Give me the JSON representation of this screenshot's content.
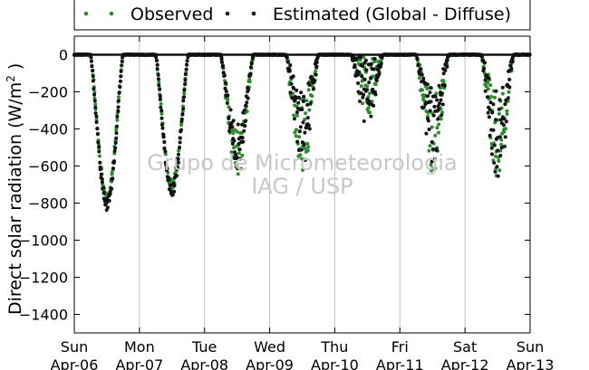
{
  "chart_data": {
    "type": "scatter",
    "ylabel_main": "Direct solar radiation (W/m",
    "ylabel_sup": "2",
    "ylabel_close": " )",
    "ylim": [
      -1500,
      100
    ],
    "yticks": [
      0,
      -200,
      -400,
      -600,
      -800,
      -1000,
      -1200,
      -1400
    ],
    "ytick_labels": [
      "0",
      "−200",
      "−400",
      "−600",
      "−800",
      "−1000",
      "−1200",
      "−1400"
    ],
    "xlim": [
      0,
      7
    ],
    "xticks": [
      0,
      1,
      2,
      3,
      4,
      5,
      6,
      7
    ],
    "xtick_days": [
      "Sun",
      "Mon",
      "Tue",
      "Wed",
      "Thu",
      "Fri",
      "Sat",
      "Sun"
    ],
    "xtick_dates": [
      "Apr-06",
      "Apr-07",
      "Apr-08",
      "Apr-09",
      "Apr-10",
      "Apr-11",
      "Apr-12",
      "Apr-13"
    ],
    "grid": "vertical",
    "legend_placement": "top, outside plot",
    "watermark": [
      "Grupo de Micrometeorologia",
      "IAG / USP"
    ],
    "series": [
      {
        "name": "Observed",
        "color": "#2e8b2e",
        "marker": "dot"
      },
      {
        "name": "Estimated (Global - Diffuse)",
        "color": "#111111",
        "marker": "dot"
      }
    ],
    "daily_minimum": [
      {
        "day": "Apr-06",
        "observed": -800,
        "estimated": -840
      },
      {
        "day": "Apr-07",
        "observed": -730,
        "estimated": -760
      },
      {
        "day": "Apr-08",
        "observed": -680,
        "estimated": -620
      },
      {
        "day": "Apr-09",
        "observed": -630,
        "estimated": -620
      },
      {
        "day": "Apr-10",
        "observed": -330,
        "estimated": -380
      },
      {
        "day": "Apr-11",
        "observed": -660,
        "estimated": -640
      },
      {
        "day": "Apr-12",
        "observed": -660,
        "estimated": -680
      }
    ]
  }
}
